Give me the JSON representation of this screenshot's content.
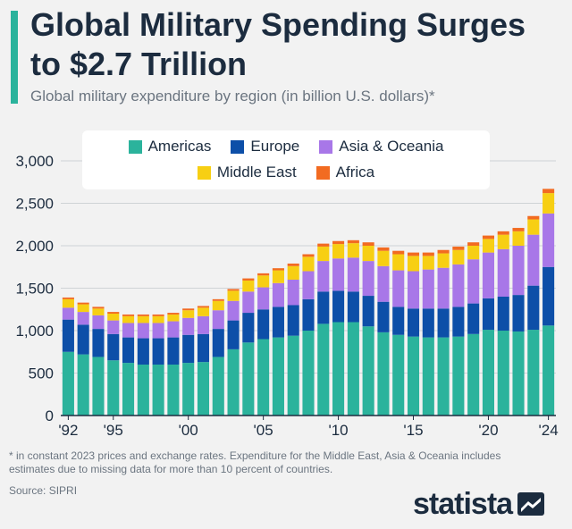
{
  "header": {
    "title": "Global Military Spending Surges to $2.7 Trillion",
    "subtitle": "Global military expenditure by region (in billion U.S. dollars)*"
  },
  "footer": {
    "footnote": "* in constant 2023 prices and exchange rates. Expenditure for the Middle East, Asia & Oceania includes estimates due to missing data for more than 10 percent of countries.",
    "source": "Source: SIPRI",
    "brand": "statista"
  },
  "colors": {
    "accent": "#2bb39c",
    "americas": "#2bb39c",
    "europe": "#0d4fa8",
    "asia_oceania": "#a877e8",
    "middle_east": "#f7cf13",
    "africa": "#f26b21",
    "background": "#f2f2f2"
  },
  "chart_data": {
    "type": "bar",
    "stacked": true,
    "title": "Global military expenditure by region (in billion U.S. dollars)*",
    "xlabel": "",
    "ylabel": "",
    "ylim": [
      0,
      3000
    ],
    "yticks": [
      "0",
      "500",
      "1,000",
      "1,500",
      "2,000",
      "2,500",
      "3,000"
    ],
    "ytick_values": [
      0,
      500,
      1000,
      1500,
      2000,
      2500,
      3000
    ],
    "xtick_labels": [
      "'92",
      "'95",
      "'00",
      "'05",
      "'10",
      "'15",
      "'20",
      "'24"
    ],
    "xtick_years": [
      1992,
      1995,
      2000,
      2005,
      2010,
      2015,
      2020,
      2024
    ],
    "grid": true,
    "legend": "top",
    "categories": [
      1992,
      1993,
      1994,
      1995,
      1996,
      1997,
      1998,
      1999,
      2000,
      2001,
      2002,
      2003,
      2004,
      2005,
      2006,
      2007,
      2008,
      2009,
      2010,
      2011,
      2012,
      2013,
      2014,
      2015,
      2016,
      2017,
      2018,
      2019,
      2020,
      2021,
      2022,
      2023,
      2024
    ],
    "series": [
      {
        "name": "Americas",
        "color": "#2bb39c",
        "values": [
          750,
          720,
          690,
          650,
          620,
          600,
          600,
          600,
          620,
          630,
          690,
          780,
          860,
          900,
          920,
          940,
          1000,
          1080,
          1100,
          1100,
          1050,
          980,
          950,
          930,
          920,
          920,
          930,
          960,
          1010,
          1000,
          990,
          1010,
          1060
        ]
      },
      {
        "name": "Europe",
        "color": "#0d4fa8",
        "values": [
          380,
          350,
          330,
          310,
          300,
          310,
          310,
          320,
          330,
          330,
          330,
          340,
          350,
          350,
          360,
          360,
          370,
          380,
          370,
          360,
          360,
          360,
          330,
          330,
          340,
          340,
          350,
          360,
          370,
          400,
          430,
          520,
          690
        ]
      },
      {
        "name": "Asia & Oceania",
        "color": "#a877e8",
        "values": [
          140,
          150,
          160,
          160,
          170,
          180,
          180,
          190,
          200,
          210,
          220,
          230,
          250,
          260,
          280,
          300,
          330,
          360,
          380,
          400,
          410,
          420,
          430,
          440,
          460,
          480,
          500,
          520,
          540,
          560,
          580,
          600,
          630
        ]
      },
      {
        "name": "Middle East",
        "color": "#f7cf13",
        "values": [
          100,
          90,
          80,
          80,
          80,
          80,
          80,
          80,
          90,
          100,
          110,
          120,
          130,
          140,
          150,
          160,
          170,
          170,
          170,
          170,
          180,
          180,
          190,
          180,
          160,
          170,
          170,
          160,
          160,
          170,
          170,
          180,
          240
        ]
      },
      {
        "name": "Africa",
        "color": "#f26b21",
        "values": [
          20,
          20,
          20,
          20,
          20,
          20,
          20,
          20,
          20,
          20,
          20,
          20,
          25,
          25,
          25,
          30,
          30,
          35,
          35,
          35,
          40,
          40,
          40,
          40,
          40,
          40,
          40,
          40,
          40,
          40,
          40,
          40,
          50
        ]
      }
    ]
  }
}
